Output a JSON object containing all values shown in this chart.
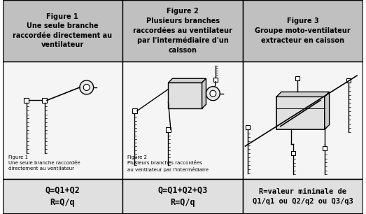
{
  "bg_color": "#ffffff",
  "header_bg": "#c0c0c0",
  "body_bg": "#f5f5f5",
  "footer_bg": "#e0e0e0",
  "border_color": "#000000",
  "col1_header": "Figure 1\nUne seule branche\nraccordée directement au\nventilateur",
  "col2_header": "Figure 2\nPlusieurs branches\nraccordées au ventilateur\npar l'intermédiaire d'un\ncaisson",
  "col3_header": "Figure 3\nGroupe moto-ventilateur\nextracteur en caisson",
  "col1_footer": "Q=Q1+Q2\nR=Q/q",
  "col2_footer": "Q=Q1+Q2+Q3\nR=Q/q",
  "col3_footer": "R=valeur minimale de\nQ1/q1 ou Q2/q2 ou Q3/q3",
  "col1_caption": "Figure 1\nUne seule branche raccordée\ndirectement au ventilateur",
  "col2_caption": "Figure 2\nPlusieurs branches raccordées\nau ventilateur par l'intermédiaire",
  "text_color": "#1a1a1a",
  "header_text_color": "#000000",
  "footer_text_color": "#000000"
}
